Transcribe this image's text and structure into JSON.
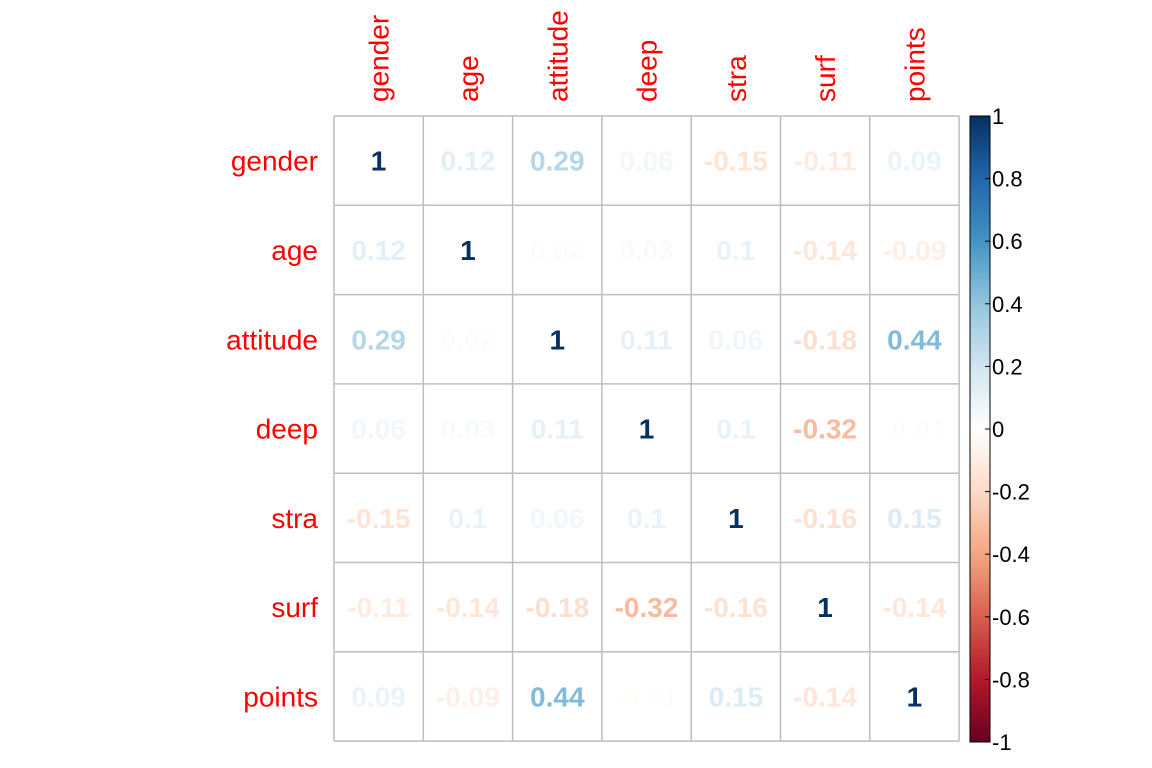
{
  "chart_data": {
    "type": "heatmap",
    "variables": [
      "gender",
      "age",
      "attitude",
      "deep",
      "stra",
      "surf",
      "points"
    ],
    "matrix": [
      [
        1,
        0.12,
        0.29,
        0.06,
        -0.15,
        -0.11,
        0.09
      ],
      [
        0.12,
        1,
        0.02,
        0.03,
        0.1,
        -0.14,
        -0.09
      ],
      [
        0.29,
        0.02,
        1,
        0.11,
        0.06,
        -0.18,
        0.44
      ],
      [
        0.06,
        0.03,
        0.11,
        1,
        0.1,
        -0.32,
        -0.01
      ],
      [
        -0.15,
        0.1,
        0.06,
        0.1,
        1,
        -0.16,
        0.15
      ],
      [
        -0.11,
        -0.14,
        -0.18,
        -0.32,
        -0.16,
        1,
        -0.14
      ],
      [
        0.09,
        -0.09,
        0.44,
        -0.01,
        0.15,
        -0.14,
        1
      ]
    ],
    "colorbar": {
      "range": [
        -1,
        1
      ],
      "ticks": [
        "1",
        "0.8",
        "0.6",
        "0.4",
        "0.2",
        "0",
        "-0.2",
        "-0.4",
        "-0.6",
        "-0.8",
        "-1"
      ]
    },
    "colors": {
      "label": "#ff0000",
      "grid": "#bebebe",
      "scale": [
        "#67001f",
        "#b2182b",
        "#d6604d",
        "#f4a582",
        "#fddbc7",
        "#ffffff",
        "#d1e5f0",
        "#92c5de",
        "#4393c3",
        "#2166ac",
        "#053061"
      ]
    }
  }
}
